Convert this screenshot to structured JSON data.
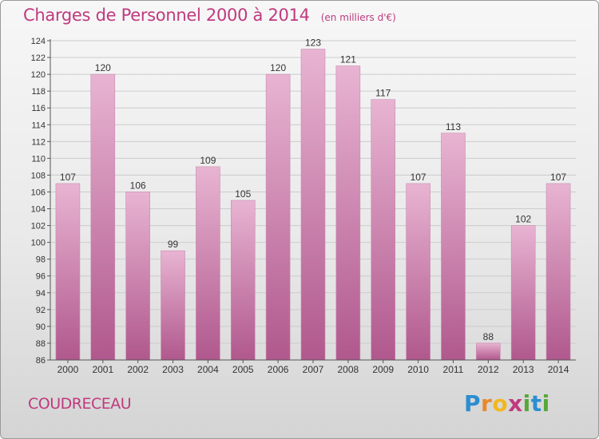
{
  "header": {
    "title": "Charges de Personnel 2000 à 2014",
    "subtitle": "(en milliers d'€)"
  },
  "footer": {
    "commune": "COUDRECEAU",
    "logo": {
      "letters": [
        "P",
        "r",
        "o",
        "x",
        "i",
        "t",
        "i"
      ],
      "colors": [
        "#2a8ed0",
        "#e8892c",
        "#f2b71e",
        "#c0397e",
        "#57a839",
        "#2a8ed0",
        "#57a839"
      ]
    }
  },
  "colors": {
    "bar_top": "#e8b4d2",
    "bar_bottom": "#b0588d",
    "axis_text": "#333333",
    "grid": "#cccccc"
  },
  "chart_data": {
    "type": "bar",
    "categories": [
      "2000",
      "2001",
      "2002",
      "2003",
      "2004",
      "2005",
      "2006",
      "2007",
      "2008",
      "2009",
      "2010",
      "2011",
      "2012",
      "2013",
      "2014"
    ],
    "values": [
      107,
      120,
      106,
      99,
      109,
      105,
      120,
      123,
      121,
      117,
      107,
      113,
      88,
      102,
      107
    ],
    "ylim": [
      86,
      124
    ],
    "yticks": [
      86,
      88,
      90,
      92,
      94,
      96,
      98,
      100,
      102,
      104,
      106,
      108,
      110,
      112,
      114,
      116,
      118,
      120,
      122,
      124
    ],
    "grid": true
  }
}
